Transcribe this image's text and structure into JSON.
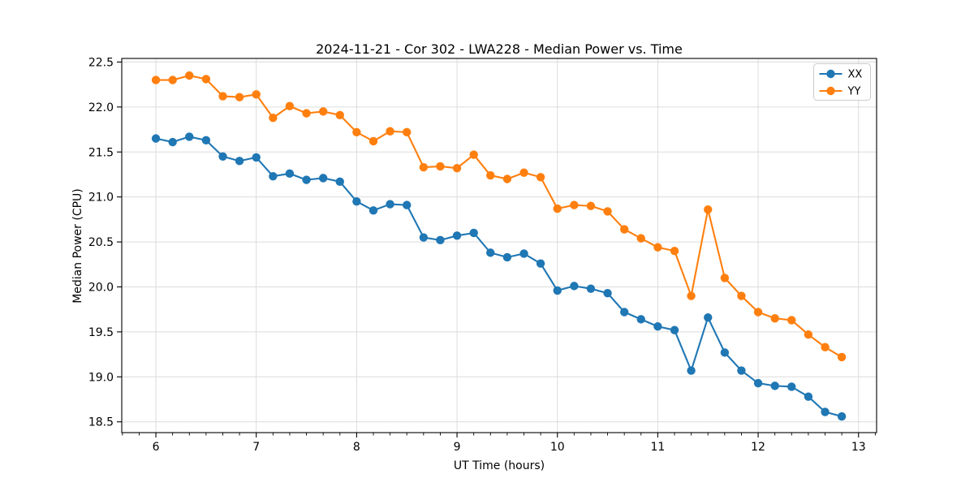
{
  "chart_data": {
    "type": "line",
    "title": "2024-11-21 - Cor 302 - LWA228 - Median Power vs. Time",
    "xlabel": "UT Time (hours)",
    "ylabel": "Median Power (CPU)",
    "xlim": [
      5.66,
      13.18
    ],
    "ylim": [
      18.38,
      22.54
    ],
    "x_ticks": [
      6,
      7,
      8,
      9,
      10,
      11,
      12,
      13
    ],
    "x_minor_tick_step": 0.1667,
    "y_ticks": [
      18.5,
      19.0,
      19.5,
      20.0,
      20.5,
      21.0,
      21.5,
      22.0,
      22.5
    ],
    "grid": true,
    "grid_color": "#dcdcdc",
    "axis_color": "#000000",
    "legend_position": "upper right",
    "x": [
      6.0,
      6.167,
      6.333,
      6.5,
      6.667,
      6.833,
      7.0,
      7.167,
      7.333,
      7.5,
      7.667,
      7.833,
      8.0,
      8.167,
      8.333,
      8.5,
      8.667,
      8.833,
      9.0,
      9.167,
      9.333,
      9.5,
      9.667,
      9.833,
      10.0,
      10.167,
      10.333,
      10.5,
      10.667,
      10.833,
      11.0,
      11.167,
      11.333,
      11.5,
      11.667,
      11.833,
      12.0,
      12.167,
      12.333,
      12.5,
      12.667,
      12.833
    ],
    "series": [
      {
        "name": "XX",
        "color": "#1f77b4",
        "values": [
          21.65,
          21.61,
          21.67,
          21.63,
          21.45,
          21.4,
          21.44,
          21.23,
          21.26,
          21.19,
          21.21,
          21.17,
          20.95,
          20.85,
          20.92,
          20.91,
          20.55,
          20.52,
          20.57,
          20.6,
          20.38,
          20.33,
          20.37,
          20.26,
          19.96,
          20.01,
          19.98,
          19.93,
          19.72,
          19.64,
          19.56,
          19.52,
          19.07,
          19.66,
          19.27,
          19.07,
          18.93,
          18.9,
          18.89,
          18.78,
          18.61,
          18.56
        ]
      },
      {
        "name": "YY",
        "color": "#ff7f0e",
        "values": [
          22.3,
          22.3,
          22.35,
          22.31,
          22.12,
          22.11,
          22.14,
          21.88,
          22.01,
          21.93,
          21.95,
          21.91,
          21.72,
          21.62,
          21.73,
          21.72,
          21.33,
          21.34,
          21.32,
          21.47,
          21.24,
          21.2,
          21.27,
          21.22,
          20.87,
          20.91,
          20.9,
          20.84,
          20.64,
          20.54,
          20.44,
          20.4,
          19.9,
          20.86,
          20.1,
          19.9,
          19.72,
          19.65,
          19.63,
          19.47,
          19.33,
          19.22
        ]
      }
    ]
  }
}
